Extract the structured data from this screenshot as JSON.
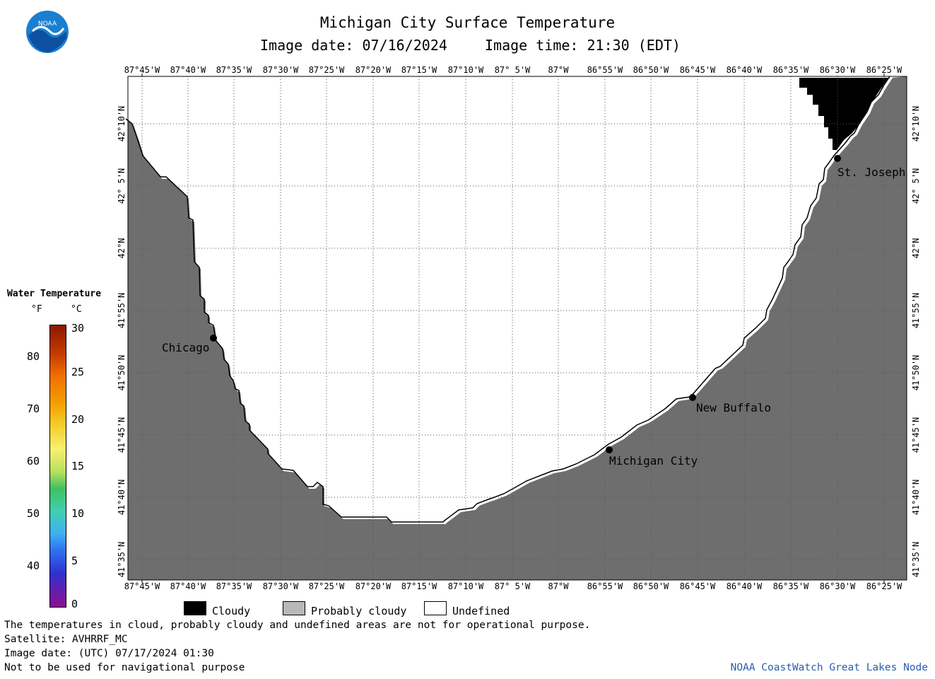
{
  "header": {
    "title": "Michigan City Surface Temperature",
    "image_date": "Image date: 07/16/2024",
    "image_time": "Image time: 21:30 (EDT)"
  },
  "logo_text": "NOAA",
  "map": {
    "lon_labels": [
      "87°45'W",
      "87°40'W",
      "87°35'W",
      "87°30'W",
      "87°25'W",
      "87°20'W",
      "87°15'W",
      "87°10'W",
      "87° 5'W",
      "87°W",
      "86°55'W",
      "86°50'W",
      "86°45'W",
      "86°40'W",
      "86°35'W",
      "86°30'W",
      "86°25'W"
    ],
    "lat_labels": [
      "42°10'N",
      "42° 5'N",
      "42°N",
      "41°55'N",
      "41°50'N",
      "41°45'N",
      "41°40'N",
      "41°35'N"
    ],
    "places": [
      {
        "name": "Chicago"
      },
      {
        "name": "New Buffalo"
      },
      {
        "name": "Michigan City"
      },
      {
        "name": "St. Joseph"
      }
    ],
    "colors": {
      "land": "#6e6e6e",
      "cloud": "#000000",
      "water_undefined": "#ffffff"
    }
  },
  "legend": {
    "title": "Water Temperature",
    "unit_f": "°F",
    "unit_c": "°C",
    "f_ticks": [
      "80",
      "70",
      "60",
      "50",
      "40"
    ],
    "c_ticks": [
      "30",
      "25",
      "20",
      "15",
      "10",
      "5",
      "0"
    ]
  },
  "key": {
    "cloudy": "Cloudy",
    "probably_cloudy": "Probably cloudy",
    "undefined": "Undefined"
  },
  "footer": {
    "line1": "The temperatures in cloud, probably cloudy and undefined areas are not for operational purpose.",
    "line2": "Satellite: AVHRRF_MC",
    "line3": "Image date: (UTC) 07/17/2024  01:30",
    "line4": "Not to be used for navigational purpose",
    "credit": "NOAA CoastWatch Great Lakes Node"
  }
}
